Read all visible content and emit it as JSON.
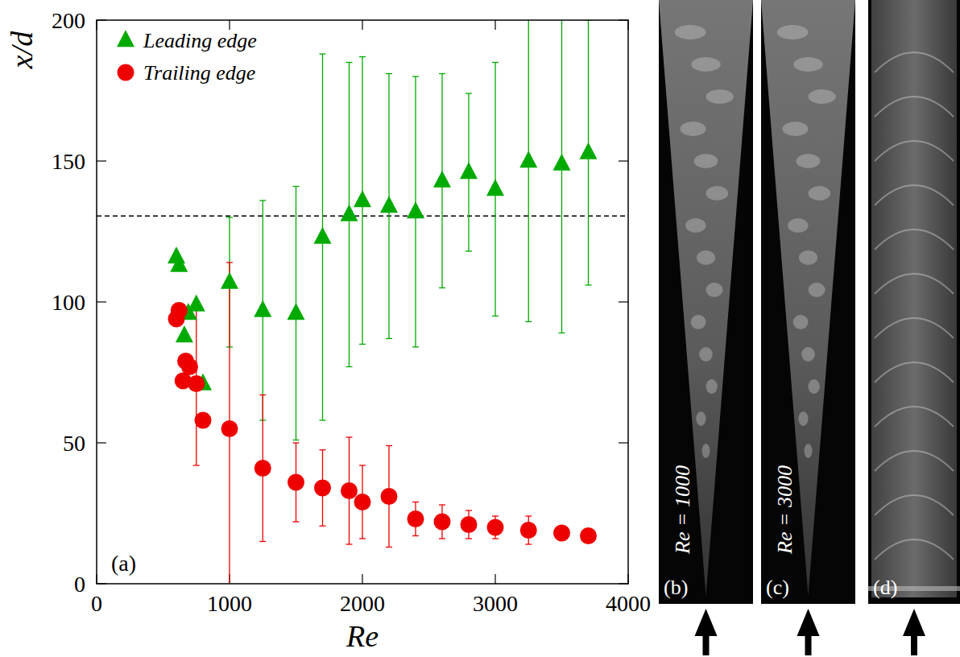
{
  "chart_data": {
    "type": "scatter",
    "x_label": "Re",
    "y_label": "x/d",
    "panel_label": "(a)",
    "xlim": [
      0,
      4000
    ],
    "ylim": [
      0,
      200
    ],
    "xticks": [
      0,
      1000,
      2000,
      3000,
      4000
    ],
    "yticks": [
      0,
      50,
      100,
      150,
      200
    ],
    "legend": "top-left",
    "hline": 130.5,
    "series": [
      {
        "name": "Leading edge",
        "color": "#00aa00",
        "marker": "triangle",
        "x": [
          600,
          620,
          660,
          690,
          750,
          800,
          1000,
          1250,
          1500,
          1700,
          1900,
          2000,
          2200,
          2400,
          2600,
          2800,
          3000,
          3250,
          3500,
          3700
        ],
        "values": [
          116,
          113,
          88,
          96,
          99,
          71,
          107,
          97,
          96,
          123,
          131,
          136,
          134,
          132,
          143,
          146,
          140,
          150,
          149,
          153
        ],
        "errors": [
          null,
          null,
          null,
          null,
          null,
          null,
          23,
          39,
          45,
          65,
          54,
          51,
          47,
          48,
          38,
          28,
          45,
          57,
          60,
          47
        ]
      },
      {
        "name": "Trailing edge",
        "color": "#ee0000",
        "marker": "circle",
        "x": [
          600,
          620,
          650,
          670,
          700,
          750,
          800,
          1000,
          1250,
          1500,
          1700,
          1900,
          2000,
          2200,
          2400,
          2600,
          2800,
          3000,
          3250,
          3500,
          3700
        ],
        "values": [
          94,
          97,
          72,
          79,
          77,
          71,
          58,
          55,
          41,
          36,
          34,
          33,
          29,
          31,
          23,
          22,
          21,
          20,
          19,
          18,
          17
        ],
        "errors": [
          null,
          null,
          null,
          null,
          null,
          29,
          null,
          59,
          26,
          14,
          13.5,
          19,
          13,
          18,
          6,
          6,
          5,
          4,
          5,
          null,
          null
        ]
      }
    ]
  },
  "panels": [
    {
      "label": "(b)",
      "text": "Re = 1000"
    },
    {
      "label": "(c)",
      "text": "Re = 3000"
    },
    {
      "label": "(d)"
    }
  ]
}
